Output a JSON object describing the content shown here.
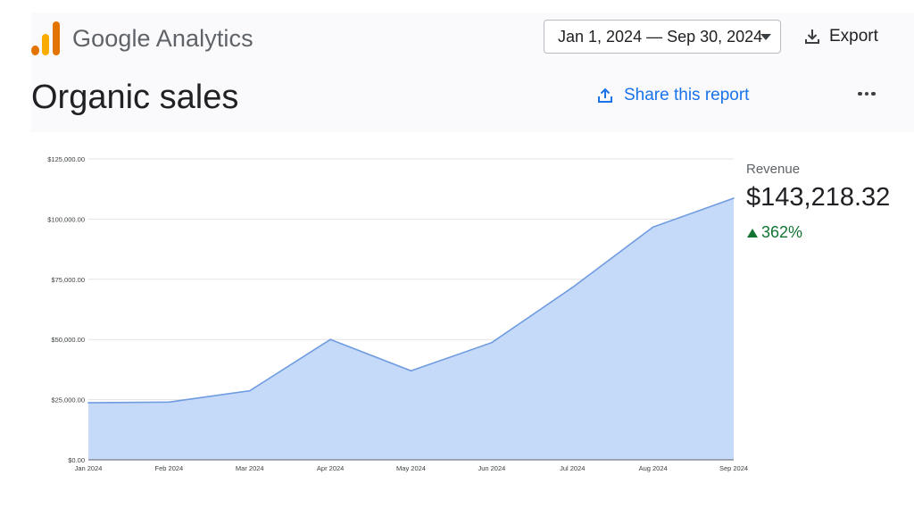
{
  "app": {
    "logo_text": "Google Analytics",
    "brand_colors": [
      "#f9ab00",
      "#e37400"
    ]
  },
  "header": {
    "date_range": "Jan 1, 2024 — Sep 30, 2024",
    "export_label": "Export",
    "share_label": "Share this report"
  },
  "page": {
    "title": "Organic sales"
  },
  "summary": {
    "label": "Revenue",
    "value": "$143,218.32",
    "change": "362%",
    "change_direction": "up",
    "change_color": "#137333"
  },
  "icons": [
    "analytics-logo",
    "caret-down-icon",
    "download-icon",
    "share-icon",
    "more-vert-icon",
    "up-triangle-icon"
  ],
  "chart_data": {
    "type": "area",
    "categories": [
      "Jan 2024",
      "Feb 2024",
      "Mar 2024",
      "Apr 2024",
      "May 2024",
      "Jun 2024",
      "Jul 2024",
      "Aug 2024",
      "Sep 2024"
    ],
    "series": [
      {
        "values": [
          23700,
          24000,
          28700,
          50000,
          37000,
          48700,
          71600,
          96700,
          108700
        ]
      }
    ],
    "ylim": [
      0,
      125000
    ],
    "yticks": [
      0,
      25000,
      50000,
      75000,
      100000,
      125000
    ],
    "ytick_labels": [
      "$0.00",
      "$25,000.00",
      "$50,000.00",
      "$75,000.00",
      "$100,000.00",
      "$125,000.00"
    ],
    "grid": true,
    "line_color": "#6f9be0",
    "fill_color": "#c5d9f9"
  }
}
